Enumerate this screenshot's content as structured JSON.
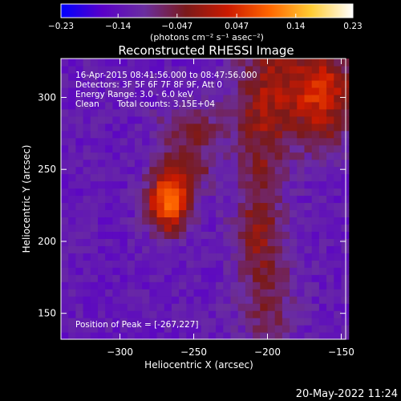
{
  "chart_data": {
    "type": "heatmap",
    "title": "Reconstructed RHESSI Image",
    "xlabel": "Heliocentric X (arcsec)",
    "ylabel": "Heliocentric Y (arcsec)",
    "xlim": [
      -340,
      -147
    ],
    "ylim": [
      132,
      327
    ],
    "x_ticks": [
      -300,
      -250,
      -200,
      -150
    ],
    "y_ticks": [
      150,
      200,
      250,
      300
    ],
    "colorbar": {
      "min": -0.23,
      "max": 0.23,
      "ticks": [
        -0.23,
        -0.14,
        -0.047,
        0.047,
        0.14,
        0.23
      ],
      "tick_labels": [
        "−0.23",
        "−0.14",
        "−0.047",
        "0.047",
        "0.14",
        "0.23"
      ],
      "unit_label": "(photons cm⁻² s⁻¹ asec⁻²)",
      "colormap": [
        "#0000ff",
        "#5a00c8",
        "#6a2ea0",
        "#7a1a1a",
        "#cc1a00",
        "#ff6600",
        "#ffcc33",
        "#ffffff"
      ]
    },
    "annotations": [
      "16-Apr-2015 08:41:56.000 to 08:47:56.000",
      "Detectors: 3F 5F 6F 7F 8F 9F, Att 0",
      "Energy Range: 3.0 - 6.0 keV",
      "Clean",
      "Total counts: 3.15E+04"
    ],
    "peak_label": "Position of Peak = [-267,227]",
    "peak": [
      -267,
      227
    ],
    "sources": [
      {
        "x": -267,
        "y": 227,
        "sx": 10,
        "sy": 14,
        "amp": 0.23
      },
      {
        "x": -255,
        "y": 255,
        "sx": 14,
        "sy": 14,
        "amp": 0.09
      },
      {
        "x": -250,
        "y": 282,
        "sx": 16,
        "sy": 10,
        "amp": 0.07
      },
      {
        "x": -185,
        "y": 310,
        "sx": 22,
        "sy": 30,
        "amp": 0.1
      },
      {
        "x": -160,
        "y": 300,
        "sx": 14,
        "sy": 22,
        "amp": 0.12
      },
      {
        "x": -205,
        "y": 255,
        "sx": 12,
        "sy": 50,
        "amp": 0.08
      },
      {
        "x": -200,
        "y": 160,
        "sx": 14,
        "sy": 28,
        "amp": 0.07
      },
      {
        "x": -210,
        "y": 205,
        "sx": 10,
        "sy": 14,
        "amp": 0.05
      }
    ],
    "background": -0.13
  },
  "footer": {
    "timestamp": "20-May-2022 11:24"
  }
}
